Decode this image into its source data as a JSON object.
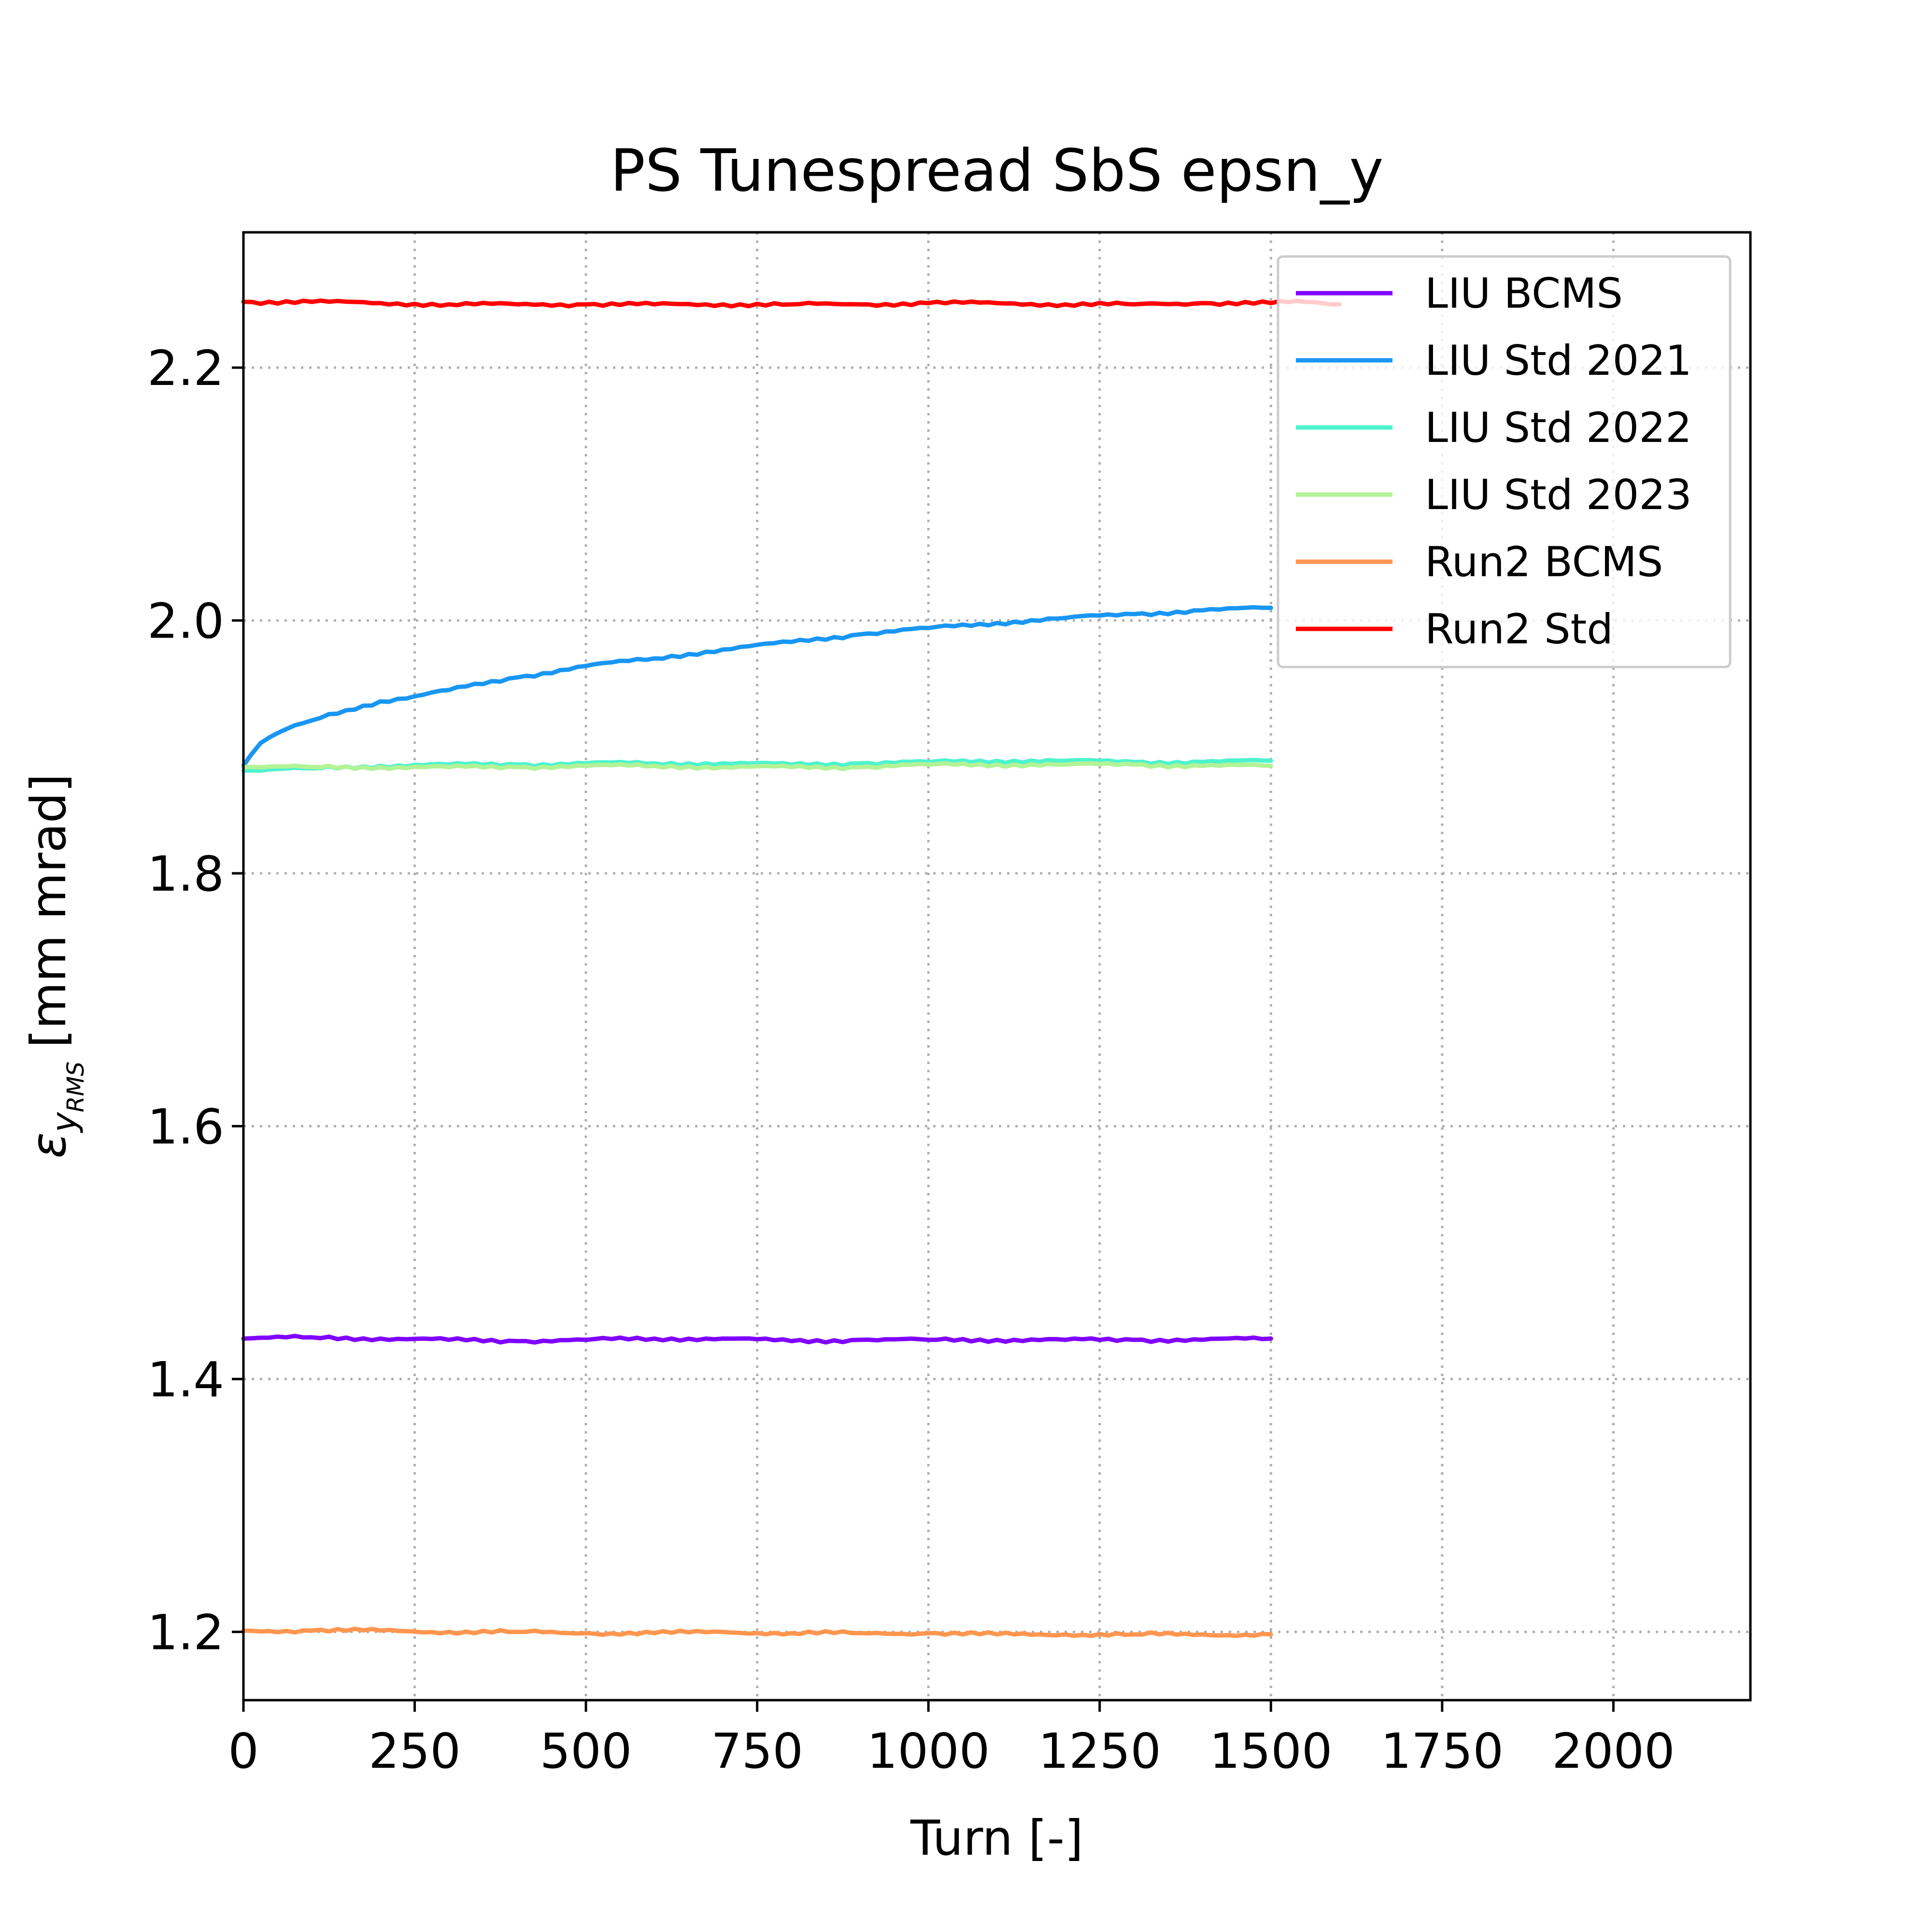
{
  "chart_data": {
    "type": "line",
    "title": "PS Tunespread SbS epsn_y",
    "xlabel": "Turn [-]",
    "ylabel": {
      "symbol": "ε",
      "subscript": "y",
      "subsubscript": "RMS",
      "unit": "[mm mrad]"
    },
    "xlim": [
      0,
      2200
    ],
    "ylim": [
      1.146,
      2.307
    ],
    "xticks": [
      0,
      250,
      500,
      750,
      1000,
      1250,
      1500,
      1750,
      2000
    ],
    "yticks": [
      1.2,
      1.4,
      1.6,
      1.8,
      2.0,
      2.2
    ],
    "ytick_labels": [
      "1.2",
      "1.4",
      "1.6",
      "1.8",
      "2.0",
      "2.2"
    ],
    "grid": true,
    "legend_position": "top-right",
    "series": [
      {
        "name": "LIU BCMS",
        "color": "#8000ff",
        "x": [
          0,
          100,
          200,
          300,
          400,
          500,
          600,
          700,
          800,
          900,
          1000,
          1100,
          1200,
          1300,
          1400,
          1500
        ],
        "y": [
          1.432,
          1.433,
          1.432,
          1.431,
          1.43,
          1.431,
          1.432,
          1.432,
          1.43,
          1.431,
          1.431,
          1.431,
          1.431,
          1.431,
          1.431,
          1.432
        ]
      },
      {
        "name": "LIU Std 2021",
        "color": "#1996f3",
        "x": [
          0,
          10,
          25,
          50,
          100,
          150,
          200,
          250,
          300,
          400,
          500,
          600,
          700,
          800,
          900,
          1000,
          1100,
          1200,
          1300,
          1400,
          1500
        ],
        "y": [
          1.885,
          1.893,
          1.903,
          1.911,
          1.921,
          1.929,
          1.936,
          1.94,
          1.945,
          1.955,
          1.964,
          1.97,
          1.977,
          1.983,
          1.989,
          1.994,
          1.998,
          2.002,
          2.005,
          2.008,
          2.01
        ]
      },
      {
        "name": "LIU Std 2022",
        "color": "#4df3ce",
        "x": [
          0,
          100,
          200,
          300,
          400,
          500,
          600,
          700,
          800,
          900,
          1000,
          1100,
          1200,
          1300,
          1400,
          1500
        ],
        "y": [
          1.881,
          1.883,
          1.885,
          1.886,
          1.886,
          1.887,
          1.887,
          1.887,
          1.886,
          1.887,
          1.888,
          1.889,
          1.889,
          1.888,
          1.888,
          1.889
        ]
      },
      {
        "name": "LIU Std 2023",
        "color": "#b2f396",
        "x": [
          0,
          100,
          200,
          300,
          400,
          500,
          600,
          700,
          800,
          900,
          1000,
          1100,
          1200,
          1300,
          1400,
          1500
        ],
        "y": [
          1.884,
          1.884,
          1.884,
          1.884,
          1.884,
          1.885,
          1.885,
          1.884,
          1.884,
          1.884,
          1.886,
          1.886,
          1.886,
          1.886,
          1.885,
          1.885
        ]
      },
      {
        "name": "Run2 BCMS",
        "color": "#ff964f",
        "x": [
          0,
          100,
          200,
          300,
          400,
          500,
          600,
          700,
          800,
          900,
          1000,
          1100,
          1200,
          1300,
          1400,
          1500
        ],
        "y": [
          1.201,
          1.201,
          1.201,
          1.2,
          1.2,
          1.199,
          1.199,
          1.2,
          1.199,
          1.199,
          1.199,
          1.198,
          1.198,
          1.198,
          1.198,
          1.198
        ]
      },
      {
        "name": "Run2 Std",
        "color": "#ff0000",
        "x": [
          0,
          100,
          200,
          300,
          400,
          500,
          600,
          700,
          800,
          900,
          1000,
          1100,
          1200,
          1300,
          1400,
          1500,
          1550,
          1600
        ],
        "y": [
          2.252,
          2.252,
          2.251,
          2.25,
          2.25,
          2.25,
          2.25,
          2.25,
          2.25,
          2.25,
          2.251,
          2.251,
          2.25,
          2.25,
          2.251,
          2.251,
          2.252,
          2.25
        ]
      }
    ]
  }
}
